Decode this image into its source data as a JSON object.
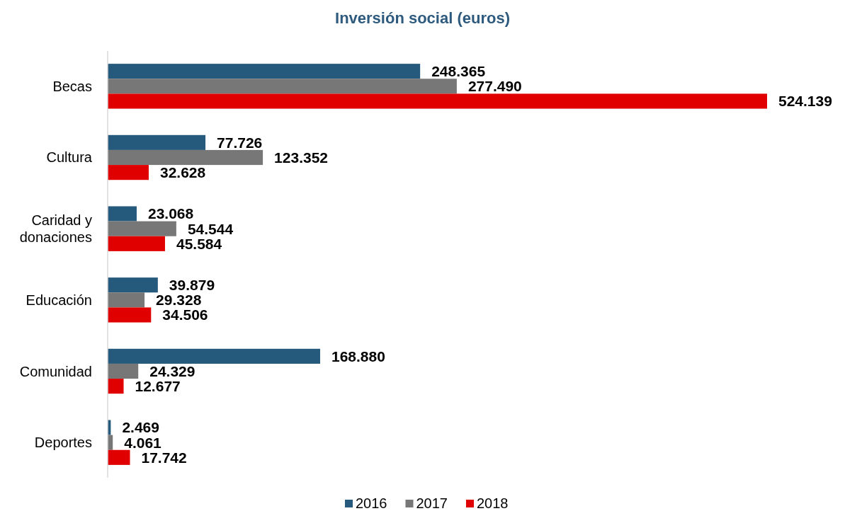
{
  "chart_data": {
    "type": "bar",
    "title": "Inversión social (euros)",
    "orientation": "horizontal",
    "categories": [
      "Becas",
      "Cultura",
      "Caridad y donaciones",
      "Educación",
      "Comunidad",
      "Deportes"
    ],
    "series": [
      {
        "name": "2016",
        "color": "#265a7c",
        "values": [
          248365,
          77726,
          23068,
          39879,
          168880,
          2469
        ],
        "value_labels": [
          "248.365",
          "77.726",
          "23.068",
          "39.879",
          "168.880",
          "2.469"
        ]
      },
      {
        "name": "2017",
        "color": "#777777",
        "values": [
          277490,
          123352,
          54544,
          29328,
          24329,
          4061
        ],
        "value_labels": [
          "277.490",
          "123.352",
          "54.544",
          "29.328",
          "24.329",
          "4.061"
        ]
      },
      {
        "name": "2018",
        "color": "#e00000",
        "values": [
          524139,
          32628,
          45584,
          34506,
          12677,
          17742
        ],
        "value_labels": [
          "524.139",
          "32.628",
          "45.584",
          "34.506",
          "12.677",
          "17.742"
        ]
      }
    ],
    "legend": "bottom",
    "tick_labels": "y"
  }
}
